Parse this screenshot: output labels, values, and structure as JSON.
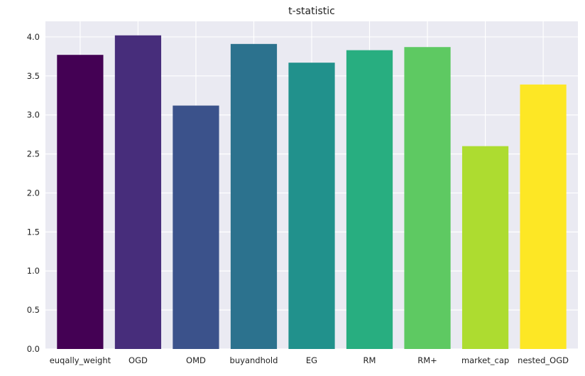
{
  "chart_data": {
    "type": "bar",
    "title": "t-statistic",
    "xlabel": "",
    "ylabel": "",
    "categories": [
      "euqally_weight",
      "OGD",
      "OMD",
      "buyandhold",
      "EG",
      "RM",
      "RM+",
      "market_cap",
      "nested_OGD"
    ],
    "values": [
      3.77,
      4.02,
      3.12,
      3.91,
      3.67,
      3.83,
      3.87,
      2.6,
      3.39
    ],
    "ylim": [
      0,
      4.2
    ],
    "yticks": [
      "0.0",
      "0.5",
      "1.0",
      "1.5",
      "2.0",
      "2.5",
      "3.0",
      "3.5",
      "4.0"
    ],
    "grid": true,
    "legend": "none",
    "colors": [
      "#440154",
      "#472d7b",
      "#3b528b",
      "#2c728e",
      "#21918c",
      "#28ae80",
      "#5ec962",
      "#addc30",
      "#fde725"
    ],
    "background_color": "#eaeaf2"
  }
}
